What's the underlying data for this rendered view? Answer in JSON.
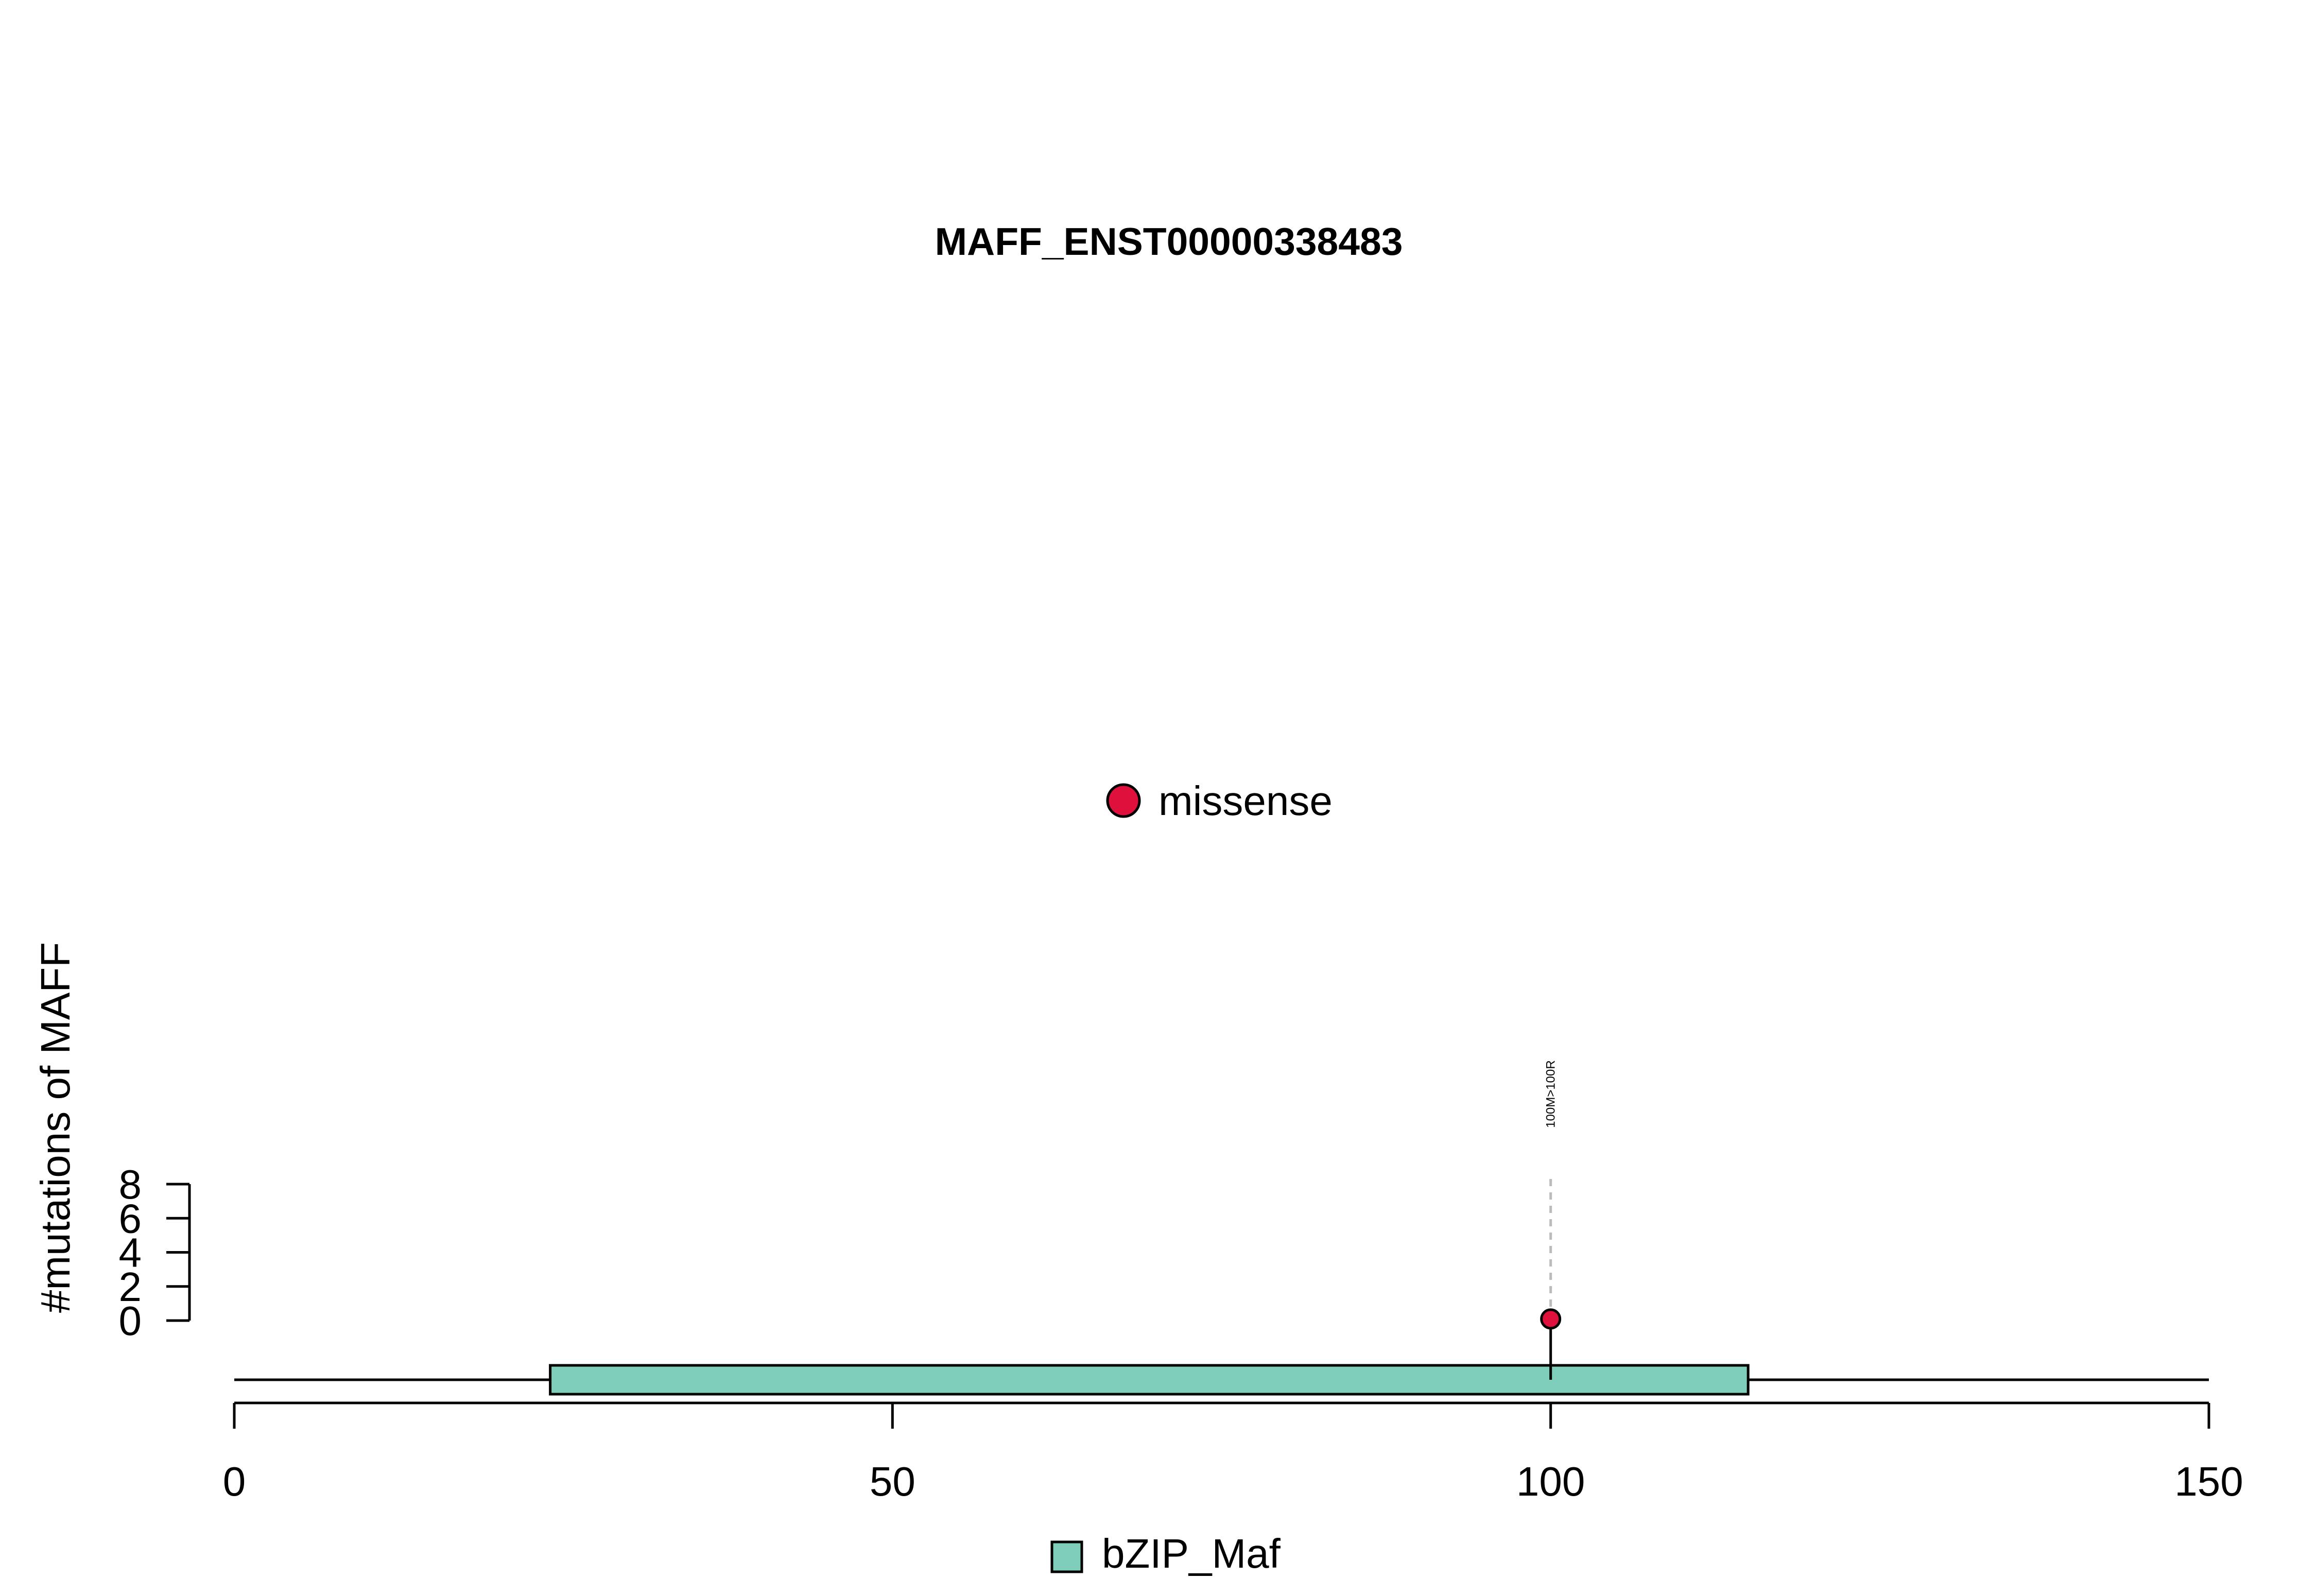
{
  "chart_data": {
    "type": "scatter",
    "title": "MAFF_ENST00000338483",
    "ylabel": "#mutations of MAFF",
    "xlabel": "",
    "xlim": [
      0,
      150
    ],
    "ylim": [
      0,
      8
    ],
    "x_ticks": [
      {
        "value": 0,
        "label": "0"
      },
      {
        "value": 50,
        "label": "50"
      },
      {
        "value": 100,
        "label": "100"
      },
      {
        "value": 150,
        "label": "150"
      }
    ],
    "y_ticks": [
      {
        "value": 0,
        "label": "0"
      },
      {
        "value": 2,
        "label": "2"
      },
      {
        "value": 4,
        "label": "4"
      },
      {
        "value": 6,
        "label": "6"
      },
      {
        "value": 8,
        "label": "8"
      }
    ],
    "protein_length": 150,
    "domains": [
      {
        "name": "bZIP_Maf",
        "start": 24,
        "end": 115,
        "color": "#7fcdbb"
      }
    ],
    "mutations": [
      {
        "position": 100,
        "count": 1,
        "type": "missense",
        "label": "100M>100R",
        "color": "#e0103c"
      }
    ],
    "mutation_legend": [
      {
        "label": "missense",
        "color": "#e0103c"
      }
    ],
    "domain_legend": [
      {
        "label": "bZIP_Maf",
        "color": "#7fcdbb"
      }
    ]
  }
}
